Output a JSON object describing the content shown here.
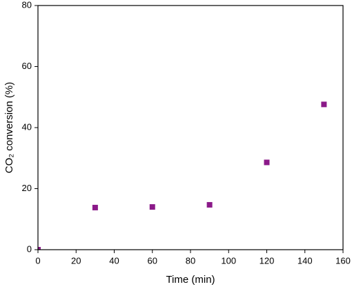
{
  "chart_data": {
    "type": "scatter",
    "xlabel": "Time (min)",
    "ylabel": "CO₂ conversion (%)",
    "x": [
      0,
      30,
      60,
      90,
      120,
      150
    ],
    "series": [
      {
        "name": null,
        "color": "#8b1a89",
        "values": [
          0,
          13.8,
          14.0,
          14.7,
          28.6,
          47.6
        ]
      }
    ],
    "xlim": [
      0,
      160
    ],
    "xticks": [
      0,
      20,
      40,
      60,
      80,
      100,
      120,
      140,
      160
    ],
    "ylim": [
      0,
      80
    ],
    "yticks": [
      0,
      20,
      40,
      60,
      80
    ],
    "grid": false
  }
}
